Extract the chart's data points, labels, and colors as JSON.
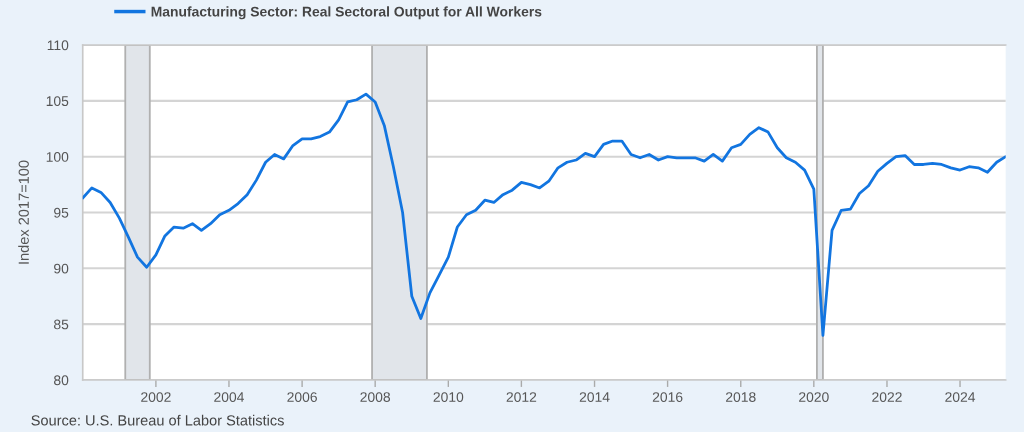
{
  "chart_data": {
    "type": "line",
    "ylabel": "Index 2017=100",
    "annotations": [
      "Source: U.S. Bureau of Labor Statistics"
    ],
    "x": [
      "2000-01",
      "2000-04",
      "2000-07",
      "2000-10",
      "2001-01",
      "2001-04",
      "2001-07",
      "2001-10",
      "2002-01",
      "2002-04",
      "2002-07",
      "2002-10",
      "2003-01",
      "2003-04",
      "2003-07",
      "2003-10",
      "2004-01",
      "2004-04",
      "2004-07",
      "2004-10",
      "2005-01",
      "2005-04",
      "2005-07",
      "2005-10",
      "2006-01",
      "2006-04",
      "2006-07",
      "2006-10",
      "2007-01",
      "2007-04",
      "2007-07",
      "2007-10",
      "2008-01",
      "2008-04",
      "2008-07",
      "2008-10",
      "2009-01",
      "2009-04",
      "2009-07",
      "2009-10",
      "2010-01",
      "2010-04",
      "2010-07",
      "2010-10",
      "2011-01",
      "2011-04",
      "2011-07",
      "2011-10",
      "2012-01",
      "2012-04",
      "2012-07",
      "2012-10",
      "2013-01",
      "2013-04",
      "2013-07",
      "2013-10",
      "2014-01",
      "2014-04",
      "2014-07",
      "2014-10",
      "2015-01",
      "2015-04",
      "2015-07",
      "2015-10",
      "2016-01",
      "2016-04",
      "2016-07",
      "2016-10",
      "2017-01",
      "2017-04",
      "2017-07",
      "2017-10",
      "2018-01",
      "2018-04",
      "2018-07",
      "2018-10",
      "2019-01",
      "2019-04",
      "2019-07",
      "2019-10",
      "2020-01",
      "2020-04",
      "2020-07",
      "2020-10",
      "2021-01",
      "2021-04",
      "2021-07",
      "2021-10",
      "2022-01",
      "2022-04",
      "2022-07",
      "2022-10",
      "2023-01",
      "2023-04",
      "2023-07",
      "2023-10",
      "2024-01",
      "2024-04",
      "2024-07",
      "2024-10",
      "2025-01",
      "2025-04"
    ],
    "series": [
      {
        "name": "Manufacturing Sector: Real Sectoral Output for All Workers",
        "color": "#1275e0",
        "values": [
          96.3,
          97.2,
          96.8,
          95.9,
          94.5,
          92.8,
          91.0,
          90.1,
          91.2,
          92.9,
          93.7,
          93.6,
          94.0,
          93.4,
          94.0,
          94.8,
          95.2,
          95.8,
          96.6,
          97.9,
          99.5,
          100.2,
          99.8,
          101.0,
          101.6,
          101.6,
          101.8,
          102.2,
          103.3,
          104.9,
          105.1,
          105.6,
          104.9,
          102.8,
          99.1,
          95.0,
          87.5,
          85.5,
          87.8,
          89.4,
          91.0,
          93.7,
          94.8,
          95.2,
          96.1,
          95.9,
          96.6,
          97.0,
          97.7,
          97.5,
          97.2,
          97.8,
          99.0,
          99.5,
          99.7,
          100.3,
          100.0,
          101.1,
          101.4,
          101.4,
          100.2,
          99.9,
          100.2,
          99.7,
          100.0,
          99.9,
          99.9,
          99.9,
          99.6,
          100.2,
          99.6,
          100.8,
          101.1,
          102.0,
          102.6,
          102.2,
          100.8,
          99.9,
          99.5,
          98.8,
          97.1,
          84.0,
          93.4,
          95.2,
          95.3,
          96.7,
          97.4,
          98.7,
          99.4,
          100.0,
          100.1,
          99.3,
          99.3,
          99.4,
          99.3,
          99.0,
          98.8,
          99.1,
          99.0,
          98.6,
          99.5,
          100.0
        ]
      }
    ],
    "xlim": [
      "2000-01-01",
      "2025-04-01"
    ],
    "xticks": [
      "2002",
      "2004",
      "2006",
      "2008",
      "2010",
      "2012",
      "2014",
      "2016",
      "2018",
      "2020",
      "2022",
      "2024"
    ],
    "ylim": [
      80,
      110
    ],
    "yticks": [
      80,
      85,
      90,
      95,
      100,
      105,
      110
    ],
    "bands": [
      {
        "axis": "x",
        "from": "2001-03-01",
        "to": "2001-11-01",
        "color": "#e1e5ea"
      },
      {
        "axis": "x",
        "from": "2007-12-01",
        "to": "2009-06-01",
        "color": "#e1e5ea"
      },
      {
        "axis": "x",
        "from": "2020-02-01",
        "to": "2020-04-01",
        "color": "#e1e5ea"
      }
    ],
    "grid": "y",
    "legend": "top left"
  }
}
